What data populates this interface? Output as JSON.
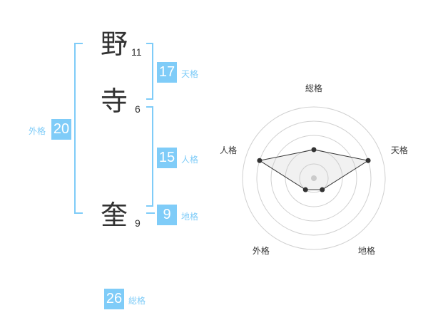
{
  "name": {
    "chars": [
      {
        "char": "野",
        "strokes": "11"
      },
      {
        "char": "寺",
        "strokes": "6"
      },
      {
        "char": "奎",
        "strokes": "9"
      }
    ]
  },
  "kaku": {
    "tenkaku": {
      "label": "天格",
      "value": "17"
    },
    "jinkaku": {
      "label": "人格",
      "value": "15"
    },
    "chikaku": {
      "label": "地格",
      "value": "9"
    },
    "gaikaku": {
      "label": "外格",
      "value": "20"
    },
    "soukaku": {
      "label": "総格",
      "value": "26"
    }
  },
  "accent_color": "#7fccf8",
  "chart_data": {
    "type": "radar",
    "axes": [
      "総格",
      "天格",
      "地格",
      "外格",
      "人格"
    ],
    "values": [
      2,
      4,
      1,
      1,
      4
    ],
    "range": [
      0,
      5
    ]
  }
}
